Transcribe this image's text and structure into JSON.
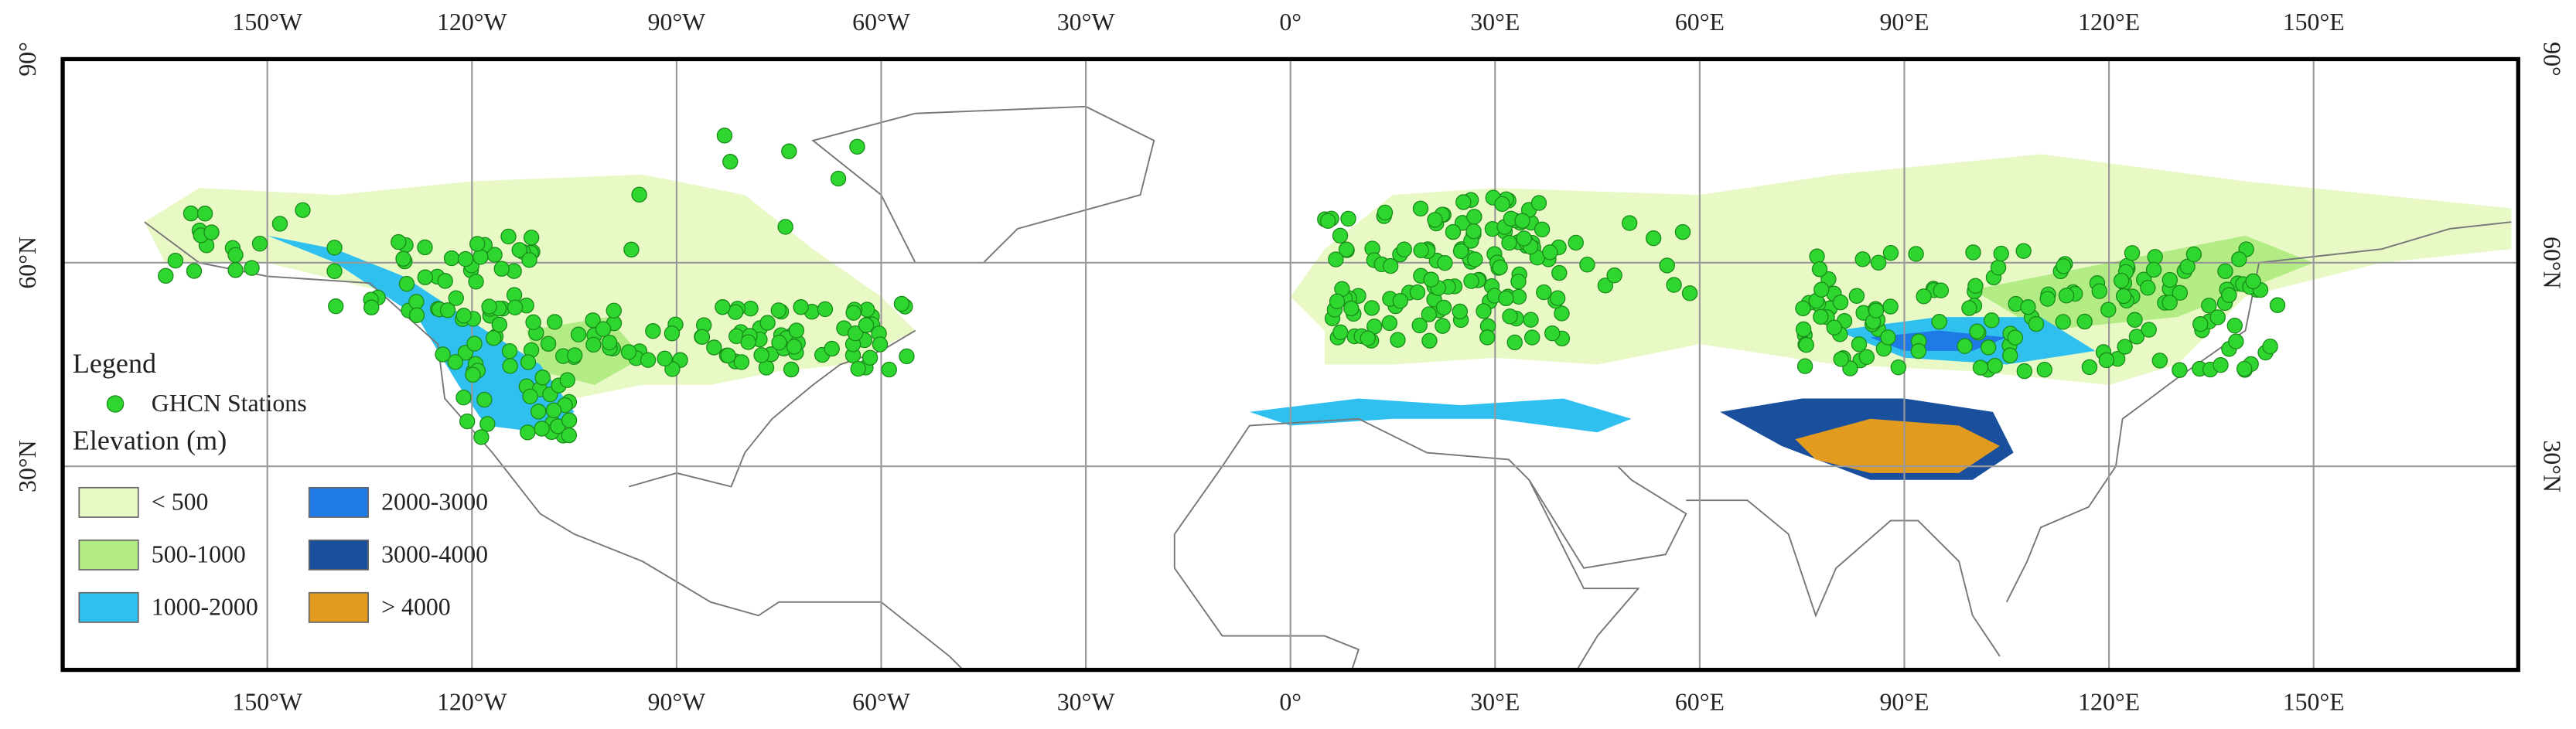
{
  "map": {
    "lon_ticks": [
      {
        "value": -150,
        "label": "150°W"
      },
      {
        "value": -120,
        "label": "120°W"
      },
      {
        "value": -90,
        "label": "90°W"
      },
      {
        "value": -60,
        "label": "60°W"
      },
      {
        "value": -30,
        "label": "30°W"
      },
      {
        "value": 0,
        "label": "0°"
      },
      {
        "value": 30,
        "label": "30°E"
      },
      {
        "value": 60,
        "label": "60°E"
      },
      {
        "value": 90,
        "label": "90°E"
      },
      {
        "value": 120,
        "label": "120°E"
      },
      {
        "value": 150,
        "label": "150°E"
      }
    ],
    "lat_ticks": [
      {
        "value": 90,
        "label": "90°"
      },
      {
        "value": 60,
        "label": "60°N"
      },
      {
        "value": 30,
        "label": "30°N"
      }
    ],
    "xlim": [
      -180,
      180
    ],
    "ylim": [
      0,
      90
    ],
    "legend": {
      "title": "Legend",
      "stations": {
        "label": "GHCN Stations",
        "color": "#2fd62f"
      },
      "elevation_title": "Elevation (m)",
      "classes": [
        {
          "label": "< 500",
          "color": "#e9f9c6"
        },
        {
          "label": "500-1000",
          "color": "#b3ec85"
        },
        {
          "label": "1000-2000",
          "color": "#30c0ef"
        },
        {
          "label": "2000-3000",
          "color": "#1f7ae6"
        },
        {
          "label": "3000-4000",
          "color": "#1a4f9e"
        },
        {
          "label": "> 4000",
          "color": "#e29a1f"
        }
      ]
    }
  }
}
